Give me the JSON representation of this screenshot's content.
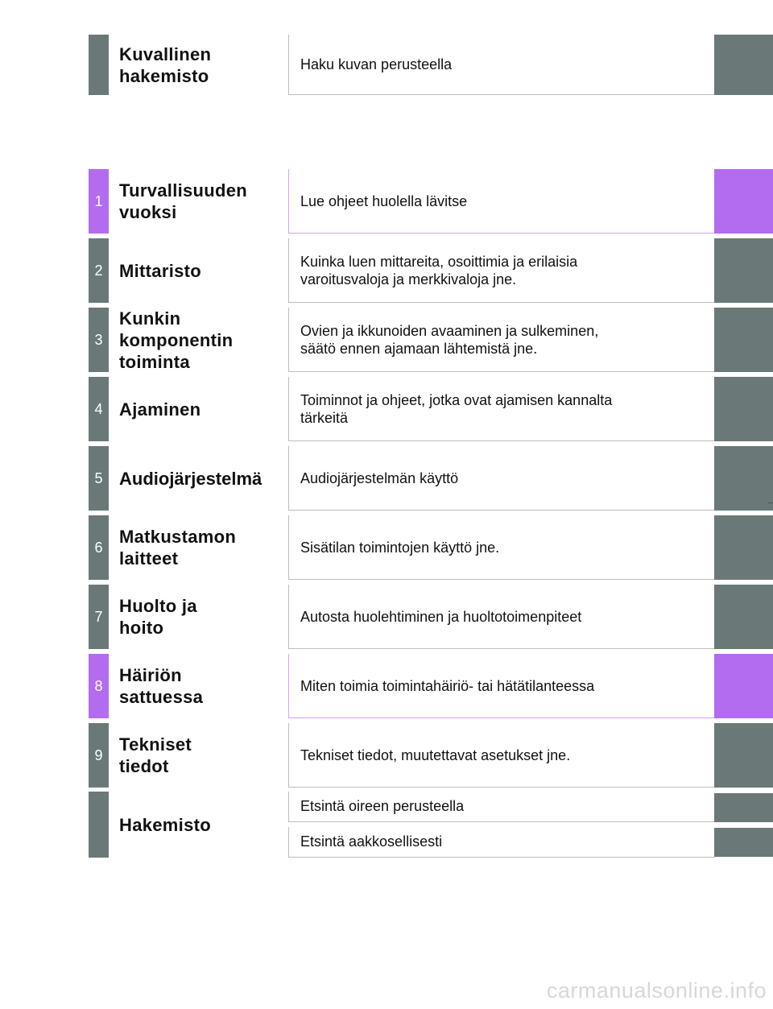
{
  "header": {
    "title": "Kuvallinen\nhakemisto",
    "description": "Haku kuvan perusteella"
  },
  "sections": [
    {
      "number": "1",
      "title": "Turvallisuuden\nvuoksi",
      "description": "Lue ohjeet huolella lävitse",
      "highlight": true
    },
    {
      "number": "2",
      "title": "Mittaristo",
      "description": "Kuinka luen mittareita, osoittimia ja erilaisia\nvaroitusvaloja ja merkkivaloja jne.",
      "highlight": false
    },
    {
      "number": "3",
      "title": "Kunkin\nkomponentin\ntoiminta",
      "description": "Ovien ja ikkunoiden avaaminen ja sulkeminen,\nsäätö ennen ajamaan lähtemistä jne.",
      "highlight": false
    },
    {
      "number": "4",
      "title": "Ajaminen",
      "description": "Toiminnot ja ohjeet, jotka ovat ajamisen kannalta\ntärkeitä",
      "highlight": false
    },
    {
      "number": "5",
      "title": "Audiojärjestelmä",
      "description": "Audiojärjestelmän käyttö",
      "highlight": false
    },
    {
      "number": "6",
      "title": "Matkustamon\nlaitteet",
      "description": "Sisätilan toimintojen käyttö jne.",
      "highlight": false
    },
    {
      "number": "7",
      "title": "Huolto ja\nhoito",
      "description": "Autosta huolehtiminen ja huoltotoimenpiteet",
      "highlight": false
    },
    {
      "number": "8",
      "title": "Häiriön\nsattuessa",
      "description": "Miten toimia toimintahäiriö- tai hätätilanteessa",
      "highlight": true
    },
    {
      "number": "9",
      "title": "Tekniset\ntiedot",
      "description": "Tekniset tiedot, muutettavat asetukset jne.",
      "highlight": false
    }
  ],
  "index": {
    "title": "Hakemisto",
    "items": [
      "Etsintä oireen perusteella",
      "Etsintä aakkosellisesti"
    ]
  },
  "watermark": "carmanualsonline.info",
  "colors": {
    "gray_tab": "#6a7878",
    "purple_tab": "#b36bf0"
  }
}
